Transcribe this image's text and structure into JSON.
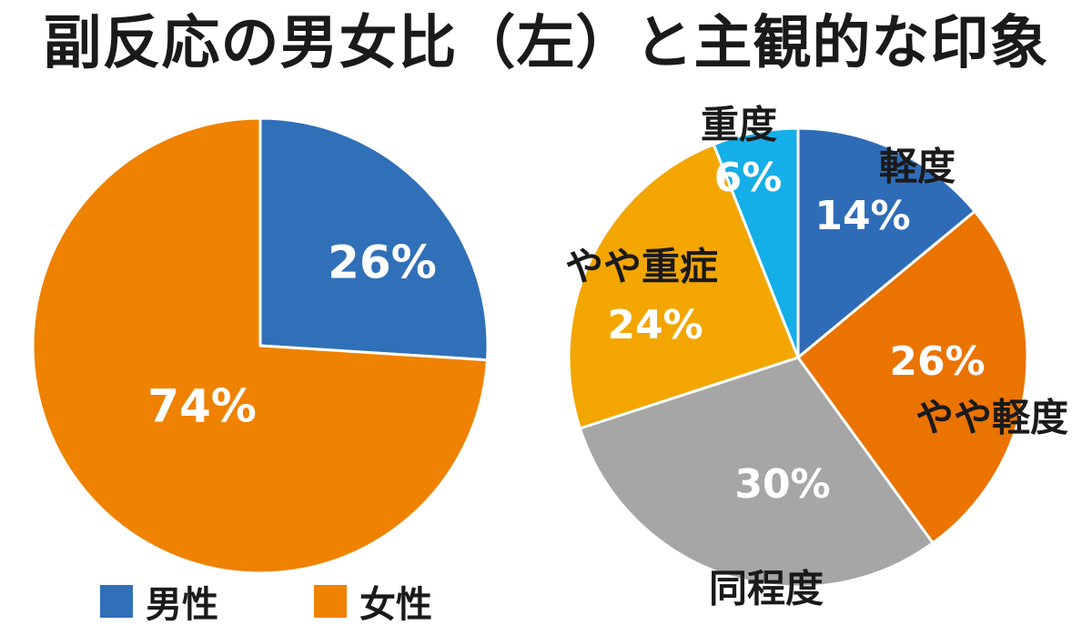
{
  "title": "副反応の男女比（左）と主観的な印象",
  "chart_data": [
    {
      "type": "pie",
      "slices": [
        {
          "name": "男性",
          "value": 26,
          "label": "26%",
          "color": "#3070b8"
        },
        {
          "name": "女性",
          "value": 74,
          "label": "74%",
          "color": "#ef8200"
        }
      ],
      "legend": [
        {
          "name": "男性",
          "color": "#3070b8"
        },
        {
          "name": "女性",
          "color": "#ef8200"
        }
      ],
      "legend_position": "bottom"
    },
    {
      "type": "pie",
      "slices": [
        {
          "name": "軽度",
          "value": 14,
          "label": "14%",
          "color": "#2f6cb8"
        },
        {
          "name": "やや軽度",
          "value": 26,
          "label": "26%",
          "color": "#eb7300"
        },
        {
          "name": "同程度",
          "value": 30,
          "label": "30%",
          "color": "#a6a6a6"
        },
        {
          "name": "やや重症",
          "value": 24,
          "label": "24%",
          "color": "#f3a600"
        },
        {
          "name": "重度",
          "value": 6,
          "label": "6%",
          "color": "#14aee8"
        }
      ]
    }
  ]
}
